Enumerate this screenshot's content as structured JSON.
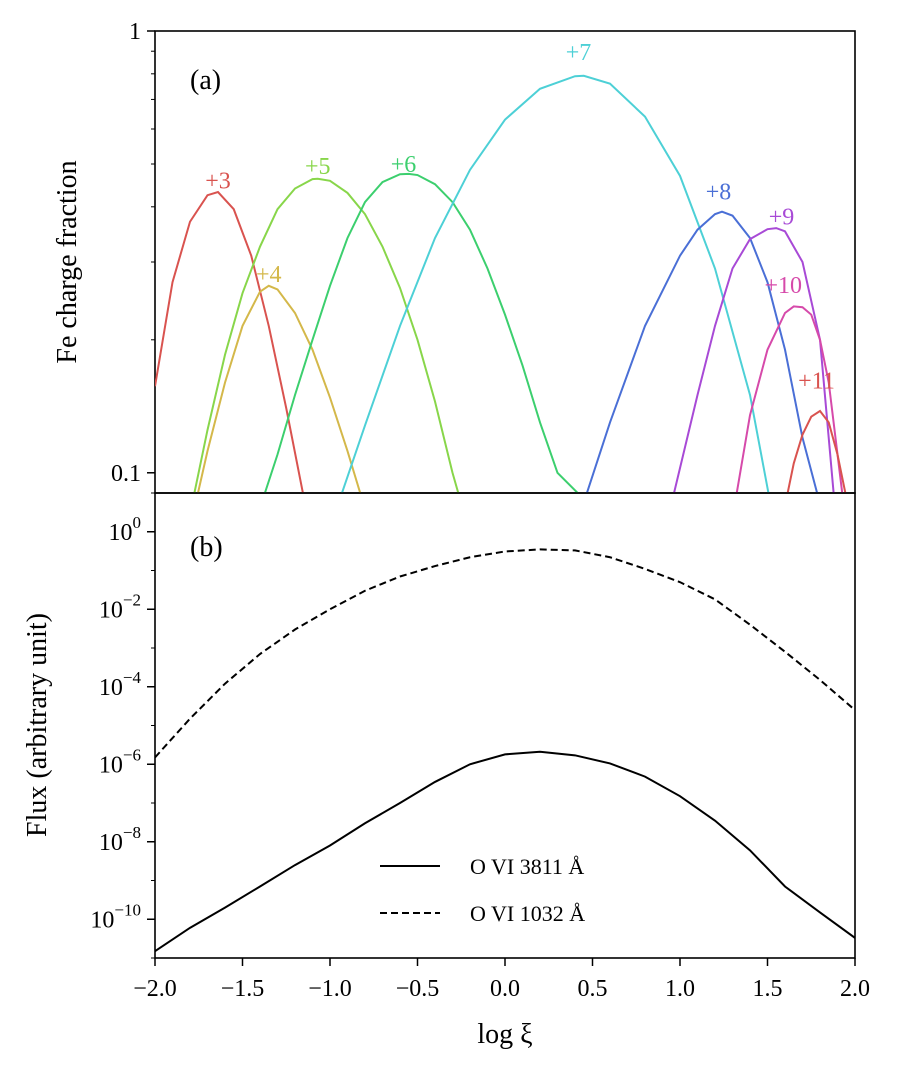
{
  "chart_data": [
    {
      "type": "line",
      "panel_label": "(a)",
      "ylabel": "Fe charge fraction",
      "xlim": [
        -2.0,
        2.0
      ],
      "ylim": [
        0.09,
        1.0
      ],
      "yscale": "log",
      "y_ticks": [
        {
          "value": 0.1,
          "label": "0.1"
        },
        {
          "value": 1,
          "label": "1"
        }
      ],
      "grid": false,
      "series": [
        {
          "name": "+3",
          "color": "#d9534f",
          "label_at": [
            -1.64,
            0.44
          ],
          "x": [
            -2.0,
            -1.9,
            -1.8,
            -1.7,
            -1.64,
            -1.55,
            -1.45,
            -1.35,
            -1.25,
            -1.15
          ],
          "y": [
            0.157,
            0.27,
            0.37,
            0.425,
            0.432,
            0.395,
            0.31,
            0.215,
            0.14,
            0.088
          ]
        },
        {
          "name": "+4",
          "color": "#d4b84a",
          "label_at": [
            -1.35,
            0.27
          ],
          "x": [
            -1.76,
            -1.7,
            -1.6,
            -1.5,
            -1.4,
            -1.35,
            -1.3,
            -1.2,
            -1.1,
            -1.0,
            -0.9,
            -0.82
          ],
          "y": [
            0.088,
            0.112,
            0.16,
            0.215,
            0.257,
            0.265,
            0.26,
            0.23,
            0.19,
            0.148,
            0.112,
            0.088
          ]
        },
        {
          "name": "+5",
          "color": "#88d64a",
          "label_at": [
            -1.07,
            0.475
          ],
          "x": [
            -1.78,
            -1.7,
            -1.6,
            -1.5,
            -1.4,
            -1.3,
            -1.2,
            -1.1,
            -1.07,
            -1.0,
            -0.9,
            -0.8,
            -0.7,
            -0.6,
            -0.5,
            -0.4,
            -0.3,
            -0.26
          ],
          "y": [
            0.088,
            0.125,
            0.185,
            0.255,
            0.325,
            0.395,
            0.44,
            0.462,
            0.463,
            0.458,
            0.43,
            0.385,
            0.325,
            0.262,
            0.2,
            0.145,
            0.1,
            0.088
          ]
        },
        {
          "name": "+6",
          "color": "#3ccf6e",
          "label_at": [
            -0.58,
            0.48
          ],
          "x": [
            -1.38,
            -1.3,
            -1.2,
            -1.1,
            -1.0,
            -0.9,
            -0.8,
            -0.7,
            -0.6,
            -0.55,
            -0.5,
            -0.4,
            -0.3,
            -0.2,
            -0.1,
            0.0,
            0.1,
            0.2,
            0.3,
            0.44
          ],
          "y": [
            0.088,
            0.11,
            0.15,
            0.2,
            0.265,
            0.34,
            0.41,
            0.455,
            0.474,
            0.475,
            0.472,
            0.45,
            0.41,
            0.355,
            0.29,
            0.228,
            0.175,
            0.13,
            0.1,
            0.088
          ]
        },
        {
          "name": "+7",
          "color": "#4dd0d6",
          "label_at": [
            0.42,
            0.86
          ],
          "x": [
            -0.94,
            -0.8,
            -0.6,
            -0.4,
            -0.2,
            0.0,
            0.2,
            0.4,
            0.45,
            0.6,
            0.8,
            1.0,
            1.2,
            1.4,
            1.51
          ],
          "y": [
            0.088,
            0.128,
            0.215,
            0.34,
            0.485,
            0.63,
            0.74,
            0.79,
            0.792,
            0.76,
            0.64,
            0.47,
            0.29,
            0.15,
            0.088
          ]
        },
        {
          "name": "+8",
          "color": "#4a6fd6",
          "label_at": [
            1.22,
            0.415
          ],
          "x": [
            0.46,
            0.6,
            0.8,
            1.0,
            1.1,
            1.2,
            1.24,
            1.3,
            1.4,
            1.5,
            1.6,
            1.7,
            1.79
          ],
          "y": [
            0.088,
            0.13,
            0.215,
            0.31,
            0.355,
            0.385,
            0.39,
            0.382,
            0.34,
            0.27,
            0.19,
            0.12,
            0.088
          ]
        },
        {
          "name": "+9",
          "color": "#a84ad6",
          "label_at": [
            1.58,
            0.365
          ],
          "x": [
            0.96,
            1.1,
            1.2,
            1.3,
            1.4,
            1.5,
            1.55,
            1.6,
            1.7,
            1.8,
            1.88
          ],
          "y": [
            0.088,
            0.15,
            0.215,
            0.29,
            0.338,
            0.356,
            0.358,
            0.352,
            0.3,
            0.2,
            0.088
          ]
        },
        {
          "name": "+10",
          "color": "#d64aaa",
          "label_at": [
            1.59,
            0.255
          ],
          "x": [
            1.32,
            1.4,
            1.5,
            1.6,
            1.65,
            1.7,
            1.75,
            1.8,
            1.85,
            1.93
          ],
          "y": [
            0.088,
            0.135,
            0.19,
            0.23,
            0.238,
            0.237,
            0.228,
            0.2,
            0.16,
            0.088
          ]
        },
        {
          "name": "+11",
          "color": "#d9534f",
          "label_at": [
            1.78,
            0.155
          ],
          "x": [
            1.61,
            1.65,
            1.7,
            1.75,
            1.8,
            1.85,
            1.9,
            1.95
          ],
          "y": [
            0.088,
            0.105,
            0.122,
            0.134,
            0.138,
            0.13,
            0.11,
            0.088
          ]
        }
      ]
    },
    {
      "type": "line",
      "panel_label": "(b)",
      "xlabel": "log ξ",
      "ylabel": "Flux (arbitrary unit)",
      "xlim": [
        -2.0,
        2.0
      ],
      "ylim": [
        1e-11,
        10
      ],
      "yscale": "log",
      "x_ticks": [
        {
          "value": -2.0,
          "label": "−2.0"
        },
        {
          "value": -1.5,
          "label": "−1.5"
        },
        {
          "value": -1.0,
          "label": "−1.0"
        },
        {
          "value": -0.5,
          "label": "−0.5"
        },
        {
          "value": 0.0,
          "label": "0.0"
        },
        {
          "value": 0.5,
          "label": "0.5"
        },
        {
          "value": 1.0,
          "label": "1.0"
        },
        {
          "value": 1.5,
          "label": "1.5"
        },
        {
          "value": 2.0,
          "label": "2.0"
        }
      ],
      "y_ticks": [
        {
          "value": 1e-10,
          "base": "10",
          "exp": "−10"
        },
        {
          "value": 1e-08,
          "base": "10",
          "exp": "−8"
        },
        {
          "value": 1e-06,
          "base": "10",
          "exp": "−6"
        },
        {
          "value": 0.0001,
          "base": "10",
          "exp": "−4"
        },
        {
          "value": 0.01,
          "base": "10",
          "exp": "−2"
        },
        {
          "value": 1,
          "base": "10",
          "exp": "0"
        }
      ],
      "grid": false,
      "legend_position": "lower-center",
      "series": [
        {
          "name": "O VI 3811 Å",
          "style": "solid",
          "color": "#000000",
          "x": [
            -2.0,
            -1.8,
            -1.6,
            -1.4,
            -1.2,
            -1.0,
            -0.8,
            -0.6,
            -0.4,
            -0.2,
            0.0,
            0.2,
            0.4,
            0.6,
            0.8,
            1.0,
            1.2,
            1.4,
            1.6,
            1.8,
            2.0
          ],
          "y": [
            1.5e-11,
            6e-11,
            2e-10,
            7e-10,
            2.5e-09,
            8e-09,
            3e-08,
            1e-07,
            3.5e-07,
            1e-06,
            1.8e-06,
            2.1e-06,
            1.7e-06,
            1.05e-06,
            4.8e-07,
            1.5e-07,
            3.5e-08,
            6e-09,
            7e-10,
            1.5e-10,
            3.3e-11
          ]
        },
        {
          "name": "O VI 1032 Å",
          "style": "dashed",
          "color": "#000000",
          "x": [
            -2.0,
            -1.8,
            -1.6,
            -1.4,
            -1.2,
            -1.0,
            -0.8,
            -0.6,
            -0.4,
            -0.2,
            0.0,
            0.2,
            0.4,
            0.6,
            0.8,
            1.0,
            1.2,
            1.4,
            1.6,
            1.8,
            2.0
          ],
          "y": [
            1.5e-06,
            1.5e-05,
            0.00012,
            0.0007,
            0.003,
            0.01,
            0.03,
            0.07,
            0.13,
            0.22,
            0.31,
            0.35,
            0.33,
            0.22,
            0.11,
            0.05,
            0.018,
            0.004,
            0.0008,
            0.00015,
            2.5e-05
          ]
        }
      ]
    }
  ]
}
